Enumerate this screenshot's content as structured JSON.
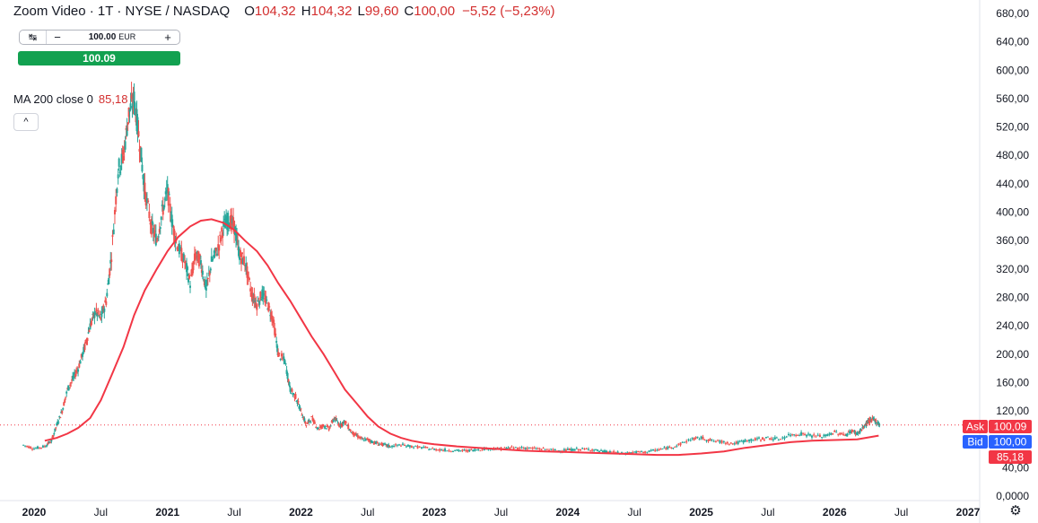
{
  "header": {
    "title": "Zoom Video · 1T · NYSE / NASDAQ",
    "open_label": "O",
    "open": "104,32",
    "high_label": "H",
    "high": "104,32",
    "low_label": "L",
    "low": "99,60",
    "close_label": "C",
    "close": "100,00",
    "change": "−5,52 (−5,23%)"
  },
  "trade": {
    "icon": "↹",
    "minus": "−",
    "quantity": "100.00",
    "currency": "EUR",
    "plus": "+",
    "price_button": "100.09"
  },
  "indicator": {
    "label": "MA 200 close 0",
    "value": "85,18",
    "collapse_icon": "^"
  },
  "settings_icon": "gear-icon",
  "colors": {
    "up": "#26a69a",
    "down": "#ef5350",
    "ma": "#f23645",
    "ask": "#f23645",
    "bid": "#2962ff"
  },
  "chart_data": {
    "type": "line",
    "chart_style": "candlestick",
    "ylim": [
      0,
      680
    ],
    "y_ticks": [
      "680,00",
      "640,00",
      "600,00",
      "560,00",
      "520,00",
      "480,00",
      "440,00",
      "400,00",
      "360,00",
      "320,00",
      "280,00",
      "240,00",
      "200,00",
      "160,00",
      "120,00",
      "80,00",
      "40,00",
      "0,0000"
    ],
    "y_tick_values": [
      680,
      640,
      600,
      560,
      520,
      480,
      440,
      400,
      360,
      320,
      280,
      240,
      200,
      160,
      120,
      80,
      40,
      0
    ],
    "x_ticks": [
      "2020",
      "Jul",
      "2021",
      "Jul",
      "2022",
      "Jul",
      "2023",
      "Jul",
      "2024",
      "Jul",
      "2025",
      "Jul",
      "2026",
      "Jul",
      "2027"
    ],
    "x_tick_values": [
      2020.0,
      2020.5,
      2021.0,
      2021.5,
      2022.0,
      2022.5,
      2023.0,
      2023.5,
      2024.0,
      2024.5,
      2025.0,
      2025.5,
      2026.0,
      2026.5,
      2027.0
    ],
    "xlim": [
      2019.9,
      2027.2
    ],
    "series": [
      {
        "name": "Price",
        "x": [
          2019.92,
          2020.0,
          2020.08,
          2020.13,
          2020.17,
          2020.21,
          2020.25,
          2020.29,
          2020.33,
          2020.38,
          2020.42,
          2020.46,
          2020.5,
          2020.54,
          2020.58,
          2020.63,
          2020.67,
          2020.71,
          2020.75,
          2020.79,
          2020.83,
          2020.88,
          2020.92,
          2020.96,
          2021.0,
          2021.04,
          2021.08,
          2021.13,
          2021.17,
          2021.21,
          2021.25,
          2021.29,
          2021.33,
          2021.38,
          2021.42,
          2021.46,
          2021.5,
          2021.54,
          2021.58,
          2021.63,
          2021.67,
          2021.71,
          2021.75,
          2021.79,
          2021.83,
          2021.88,
          2021.92,
          2021.96,
          2022.0,
          2022.04,
          2022.08,
          2022.13,
          2022.17,
          2022.21,
          2022.25,
          2022.29,
          2022.33,
          2022.38,
          2022.42,
          2022.46,
          2022.5,
          2022.54,
          2022.58,
          2022.63,
          2022.67,
          2022.75,
          2022.83,
          2022.92,
          2023.0,
          2023.08,
          2023.17,
          2023.25,
          2023.33,
          2023.42,
          2023.5,
          2023.58,
          2023.67,
          2023.75,
          2023.83,
          2023.92,
          2024.0,
          2024.08,
          2024.17,
          2024.25,
          2024.33,
          2024.42,
          2024.5,
          2024.58,
          2024.67,
          2024.75,
          2024.83,
          2024.92,
          2025.0,
          2025.08,
          2025.17,
          2025.25,
          2025.33,
          2025.42,
          2025.5,
          2025.58,
          2025.67,
          2025.75,
          2025.83,
          2025.92,
          2026.0,
          2026.08,
          2026.13,
          2026.17,
          2026.21,
          2026.25,
          2026.29,
          2026.32,
          2026.34
        ],
        "values": [
          72,
          67,
          70,
          78,
          100,
          120,
          150,
          165,
          180,
          210,
          240,
          260,
          250,
          275,
          340,
          460,
          480,
          540,
          560,
          500,
          430,
          380,
          360,
          400,
          430,
          380,
          350,
          330,
          300,
          340,
          330,
          290,
          330,
          350,
          380,
          390,
          380,
          340,
          330,
          285,
          270,
          285,
          270,
          250,
          200,
          190,
          150,
          140,
          120,
          100,
          110,
          95,
          100,
          95,
          110,
          100,
          105,
          90,
          85,
          80,
          80,
          76,
          74,
          72,
          70,
          72,
          70,
          68,
          66,
          65,
          64,
          64,
          66,
          67,
          67,
          68,
          68,
          67,
          66,
          64,
          65,
          66,
          66,
          63,
          62,
          60,
          62,
          62,
          65,
          68,
          72,
          80,
          82,
          78,
          76,
          74,
          78,
          80,
          82,
          80,
          86,
          88,
          85,
          84,
          90,
          86,
          92,
          88,
          95,
          105,
          108,
          104,
          100
        ]
      },
      {
        "name": "MA 200 close 0",
        "x": [
          2020.08,
          2020.17,
          2020.25,
          2020.33,
          2020.42,
          2020.5,
          2020.58,
          2020.67,
          2020.75,
          2020.83,
          2020.92,
          2021.0,
          2021.08,
          2021.17,
          2021.25,
          2021.33,
          2021.42,
          2021.5,
          2021.58,
          2021.67,
          2021.75,
          2021.83,
          2021.92,
          2022.0,
          2022.08,
          2022.17,
          2022.25,
          2022.33,
          2022.42,
          2022.5,
          2022.58,
          2022.67,
          2022.75,
          2022.83,
          2022.92,
          2023.0,
          2023.17,
          2023.33,
          2023.5,
          2023.67,
          2023.83,
          2024.0,
          2024.17,
          2024.33,
          2024.5,
          2024.67,
          2024.83,
          2025.0,
          2025.17,
          2025.33,
          2025.5,
          2025.67,
          2025.83,
          2026.0,
          2026.17,
          2026.33
        ],
        "values": [
          78,
          82,
          88,
          96,
          110,
          135,
          170,
          210,
          255,
          290,
          320,
          345,
          365,
          380,
          388,
          390,
          385,
          375,
          360,
          345,
          325,
          300,
          275,
          250,
          225,
          200,
          175,
          150,
          130,
          112,
          98,
          88,
          82,
          78,
          75,
          73,
          70,
          68,
          66,
          64,
          63,
          62,
          61,
          60,
          59,
          58,
          58,
          60,
          63,
          68,
          72,
          76,
          78,
          79,
          80,
          85.18
        ]
      }
    ],
    "last_price_labels": [
      {
        "label": "Ask",
        "value": "100,09",
        "price": 100.09
      },
      {
        "label": "Bid",
        "value": "100,00",
        "price": 100.0
      },
      {
        "label": "",
        "value": "85,18",
        "price": 85.18
      }
    ],
    "grid": false
  }
}
